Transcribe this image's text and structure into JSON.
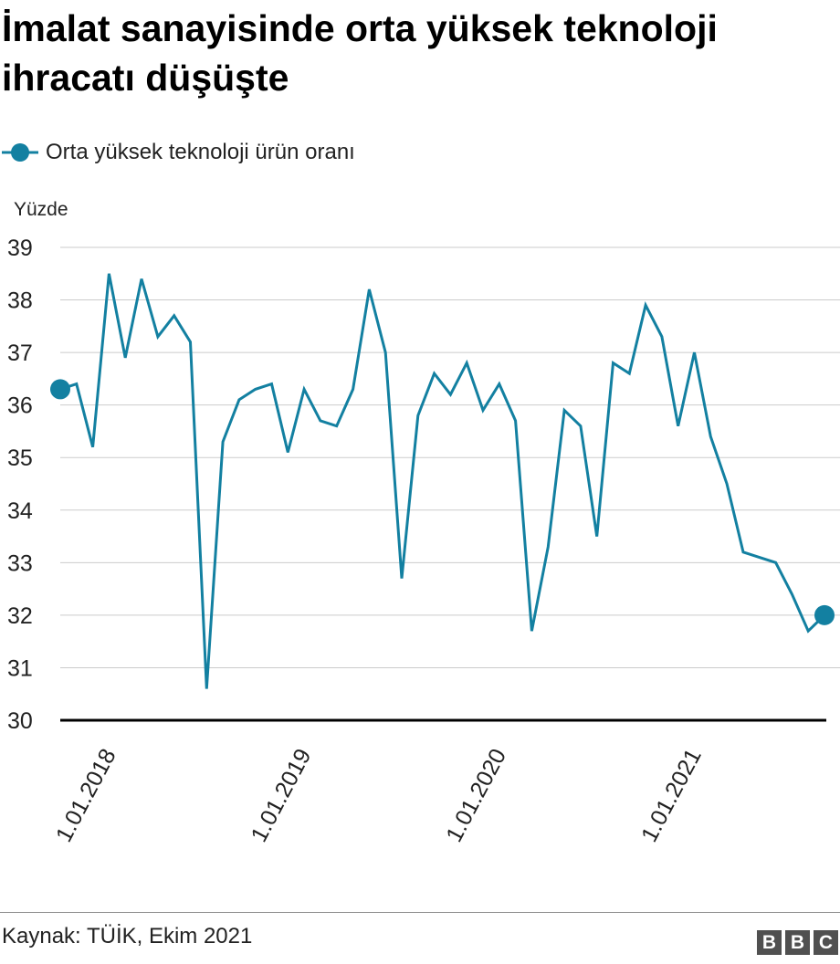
{
  "title": "İmalat sanayisinde orta yüksek teknoloji ihracatı düşüşte",
  "legend_label": "Orta yüksek teknoloji ürün oranı",
  "source": "Kaynak: TÜİK, Ekim 2021",
  "logo_letters": [
    "B",
    "B",
    "C"
  ],
  "colors": {
    "series": "#1380a1",
    "grid": "#cbcbcb",
    "baseline": "#000000",
    "logo": "#505050"
  },
  "chart_data": {
    "type": "line",
    "ylabel": "Yüzde",
    "ylim": [
      30,
      39
    ],
    "yticks": [
      39,
      38,
      37,
      36,
      35,
      34,
      33,
      32,
      31,
      30
    ],
    "xticks": [
      "1.01.2018",
      "1.01.2019",
      "1.01.2020",
      "1.01.2021"
    ],
    "xtick_index": [
      3,
      15,
      27,
      39
    ],
    "grid": true,
    "legend_position": "top-left",
    "series": [
      {
        "name": "Orta yüksek teknoloji ürün oranı",
        "color": "#1380a1",
        "values": [
          36.3,
          36.4,
          35.2,
          38.5,
          36.9,
          38.4,
          37.3,
          37.7,
          37.2,
          30.6,
          35.3,
          36.1,
          36.3,
          36.4,
          35.1,
          36.3,
          35.7,
          35.6,
          36.3,
          38.2,
          37.0,
          32.7,
          35.8,
          36.6,
          36.2,
          36.8,
          35.9,
          36.4,
          35.7,
          31.7,
          33.3,
          35.9,
          35.6,
          33.5,
          36.8,
          36.6,
          37.9,
          37.3,
          35.6,
          37.0,
          35.4,
          34.5,
          33.2,
          33.1,
          33.0,
          32.4,
          31.7,
          32.0
        ]
      }
    ]
  }
}
